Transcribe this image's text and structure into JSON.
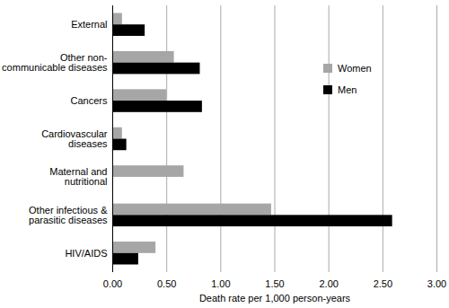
{
  "chart_data": {
    "type": "bar",
    "orientation": "horizontal",
    "categories": [
      "External",
      "Other non-communicable diseases",
      "Cancers",
      "Cardiovascular diseases",
      "Maternal and nutritional",
      "Other infectious & parasitic diseases",
      "HIV/AIDS"
    ],
    "series": [
      {
        "name": "Women",
        "color": "#a6a6a6",
        "values": [
          0.09,
          0.57,
          0.5,
          0.09,
          0.66,
          1.47,
          0.4
        ]
      },
      {
        "name": "Men",
        "color": "#000000",
        "values": [
          0.3,
          0.81,
          0.83,
          0.13,
          0,
          2.59,
          0.24
        ]
      }
    ],
    "xlabel": "Death rate per 1,000 person-years",
    "xlim": [
      0,
      3
    ],
    "xticks": [
      {
        "value": 0,
        "label": "0.00"
      },
      {
        "value": 0.5,
        "label": "0.50"
      },
      {
        "value": 1,
        "label": "1.00"
      },
      {
        "value": 1.5,
        "label": "1.50"
      },
      {
        "value": 2,
        "label": "2.00"
      },
      {
        "value": 2.5,
        "label": "2.50"
      },
      {
        "value": 3,
        "label": "3.00"
      }
    ],
    "grid": true,
    "legend": "upper right"
  }
}
